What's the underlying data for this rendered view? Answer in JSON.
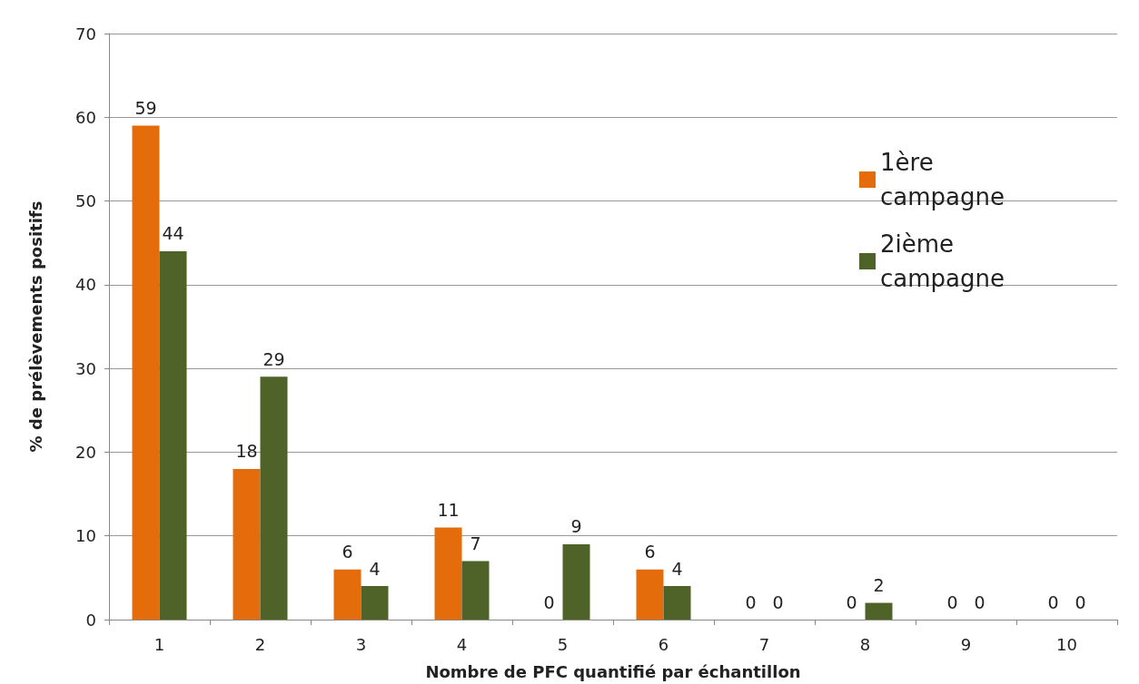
{
  "chart_data": {
    "type": "bar",
    "xlabel": "Nombre de PFC quantifié par échantillon",
    "ylabel": "% de prélèvements positifs",
    "categories": [
      "1",
      "2",
      "3",
      "4",
      "5",
      "6",
      "7",
      "8",
      "9",
      "10"
    ],
    "series": [
      {
        "name": "1ère campagne",
        "color": "#e46c0a",
        "values": [
          59,
          18,
          6,
          11,
          0,
          6,
          0,
          0,
          0,
          0
        ]
      },
      {
        "name": "2ième campagne",
        "color": "#4f6228",
        "values": [
          44,
          29,
          4,
          7,
          9,
          4,
          0,
          2,
          0,
          0
        ]
      }
    ],
    "ylim": [
      0,
      70
    ],
    "yticks": [
      0,
      10,
      20,
      30,
      40,
      50,
      60,
      70
    ],
    "grid": "y",
    "legend": "top right",
    "data_labels": true
  }
}
